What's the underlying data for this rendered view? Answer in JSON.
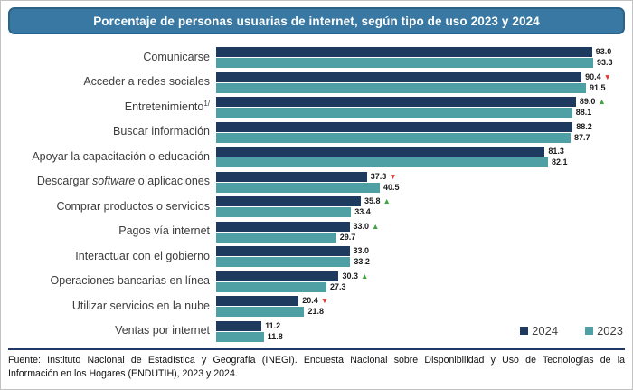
{
  "title": "Porcentaje de personas usuarias de internet, según tipo de uso 2023 y 2024",
  "legend": {
    "year_2024": "2024",
    "year_2023": "2023"
  },
  "footer": {
    "line1": "Fuente: Instituto Nacional de Estadística y Geografía (INEGI). Encuesta Nacional sobre Disponibilidad y Uso de Tecnologías de la",
    "line2": "Información en los Hogares (ENDUTIH), 2023 y 2024."
  },
  "colors": {
    "title_bg": "#3878A3",
    "title_border": "#2B6287",
    "bar_2024": "#1E3A5F",
    "bar_2023": "#4FA0A5",
    "marker_up": "#3FA43F",
    "marker_down": "#E0392F",
    "rule": "#1F3864"
  },
  "chart_data": {
    "type": "bar",
    "orientation": "horizontal",
    "title": "Porcentaje de personas usuarias de internet, según tipo de uso 2023 y 2024",
    "xlabel": "",
    "ylabel": "",
    "xlim": [
      0,
      100
    ],
    "grid": false,
    "legend_position": "bottom-right",
    "series_names": [
      "2024",
      "2023"
    ],
    "marker_legend": {
      "up": "increase vs 2023 (green up triangle)",
      "down": "decrease vs 2023 (red down triangle)"
    },
    "categories": [
      {
        "label": "Comunicarse",
        "v2024": 93.0,
        "v2023": 93.3,
        "marker": null
      },
      {
        "label": "Acceder a redes sociales",
        "v2024": 90.4,
        "v2023": 91.5,
        "marker": "down"
      },
      {
        "label": "Entretenimiento",
        "sup": "1/",
        "v2024": 89.0,
        "v2023": 88.1,
        "marker": "up"
      },
      {
        "label": "Buscar información",
        "v2024": 88.2,
        "v2023": 87.7,
        "marker": null
      },
      {
        "label": "Apoyar la capacitación o educación",
        "v2024": 81.3,
        "v2023": 82.1,
        "marker": null
      },
      {
        "label": "Descargar software o aplicaciones",
        "italic_word": "software",
        "v2024": 37.3,
        "v2023": 40.5,
        "marker": "down"
      },
      {
        "label": "Comprar productos o servicios",
        "v2024": 35.8,
        "v2023": 33.4,
        "marker": "up"
      },
      {
        "label": "Pagos vía internet",
        "v2024": 33.0,
        "v2023": 29.7,
        "marker": "up"
      },
      {
        "label": "Interactuar con el gobierno",
        "v2024": 33.0,
        "v2023": 33.2,
        "marker": null
      },
      {
        "label": "Operaciones bancarias en línea",
        "v2024": 30.3,
        "v2023": 27.3,
        "marker": "up"
      },
      {
        "label": "Utilizar servicios en la nube",
        "v2024": 20.4,
        "v2023": 21.8,
        "marker": "down"
      },
      {
        "label": "Ventas por internet",
        "v2024": 11.2,
        "v2023": 11.8,
        "marker": null
      }
    ]
  }
}
